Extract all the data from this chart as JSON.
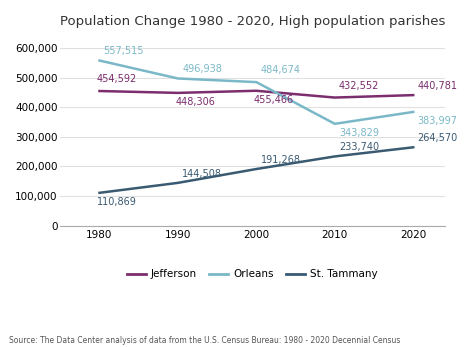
{
  "title": "Population Change 1980 - 2020, High population parishes",
  "years": [
    1980,
    1990,
    2000,
    2010,
    2020
  ],
  "jefferson": [
    454592,
    448306,
    455466,
    432552,
    440781
  ],
  "orleans": [
    557515,
    496938,
    484674,
    343829,
    383997
  ],
  "st_tammany": [
    110869,
    144508,
    191268,
    233740,
    264570
  ],
  "jefferson_color": "#7b2d6e",
  "orleans_color": "#7ab8c8",
  "st_tammany_color": "#3a5a72",
  "jefferson_label": "Jefferson",
  "orleans_label": "Orleans",
  "st_tammany_label": "St. Tammany",
  "ylim": [
    0,
    640000
  ],
  "yticks": [
    0,
    100000,
    200000,
    300000,
    400000,
    500000,
    600000
  ],
  "source_text": "Source: The Data Center analysis of data from the U.S. Census Bureau: 1980 - 2020 Decennial Census",
  "bg_color": "#ffffff",
  "grid_color": "#e0e0e0",
  "linewidth": 1.8,
  "annotation_fontsize": 7.0,
  "tick_fontsize": 7.5
}
